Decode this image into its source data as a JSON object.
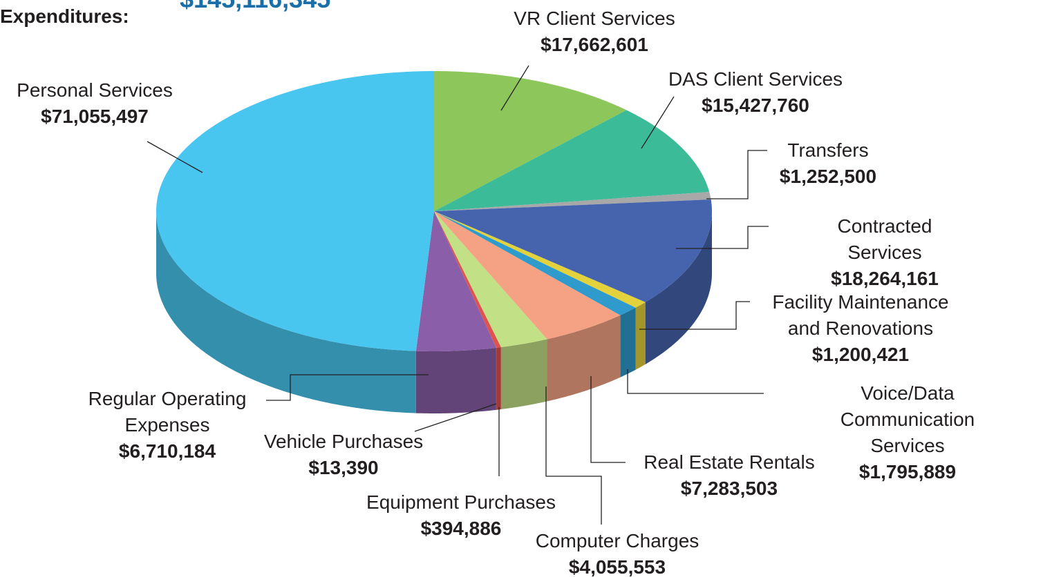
{
  "chart_data": {
    "type": "pie3d",
    "title": "Expenditures:",
    "subtitle": "$145,116,345",
    "categories": [
      "VR Client Services",
      "DAS Client Services",
      "Transfers",
      "Contracted Services",
      "Facility Maintenance\nand Renovations",
      "Voice/Data Communication\nServices",
      "Real Estate Rentals",
      "Computer Charges",
      "Equipment Purchases",
      "Vehicle Purchases",
      "Regular Operating\nExpenses",
      "Personal Services"
    ],
    "values": [
      17662601,
      15427760,
      1252500,
      18264161,
      1200421,
      1795889,
      7283503,
      4055553,
      394886,
      13390,
      6710184,
      71055497
    ],
    "value_labels": [
      "$17,662,601",
      "$15,427,760",
      "$1,252,500",
      "$18,264,161",
      "$1,200,421",
      "$1,795,889",
      "$7,283,503",
      "$4,055,553",
      "$394,886",
      "$13,390",
      "$6,710,184",
      "$71,055,497"
    ],
    "colors": [
      "#8dc75b",
      "#3bbb98",
      "#a8a8a8",
      "#4664ae",
      "#e3d23c",
      "#2e9bcc",
      "#f4a283",
      "#c2e085",
      "#e0524f",
      "#b8282a",
      "#8a5ea8",
      "#48c6f0"
    ]
  }
}
